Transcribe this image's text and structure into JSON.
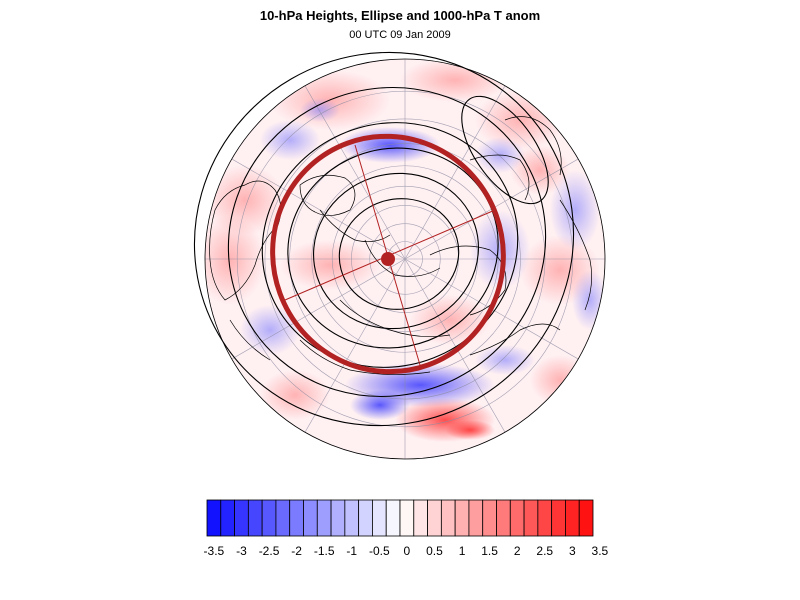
{
  "header": {
    "title": "10-hPa Heights, Ellipse and 1000-hPa T anom",
    "subtitle": "00 UTC 09 Jan 2009"
  },
  "colors": {
    "negative_max": "#1010ff",
    "neutral": "#ffffff",
    "positive_max": "#ff1010",
    "ellipse": "#b22222",
    "contour": "#000000",
    "grid": "#8c8ca0"
  },
  "map": {
    "projection": "north-polar-stereographic",
    "height_contour_count": 6,
    "ellipse_axis_count": 2,
    "grid": true
  },
  "colorbar": {
    "levels": [
      -3.5,
      -3.25,
      -3,
      -2.75,
      -2.5,
      -2.25,
      -2,
      -1.75,
      -1.5,
      -1.25,
      -1,
      -0.75,
      -0.5,
      -0.25,
      0,
      0.25,
      0.5,
      0.75,
      1,
      1.25,
      1.5,
      1.75,
      2,
      2.25,
      2.5,
      2.75,
      3,
      3.25,
      3.5
    ],
    "tick_labels": [
      "-3.5",
      "-3",
      "-2.5",
      "-2",
      "-1.5",
      "-1",
      "-0.5",
      "0",
      "0.5",
      "1",
      "1.5",
      "2",
      "2.5",
      "3",
      "3.5"
    ]
  }
}
